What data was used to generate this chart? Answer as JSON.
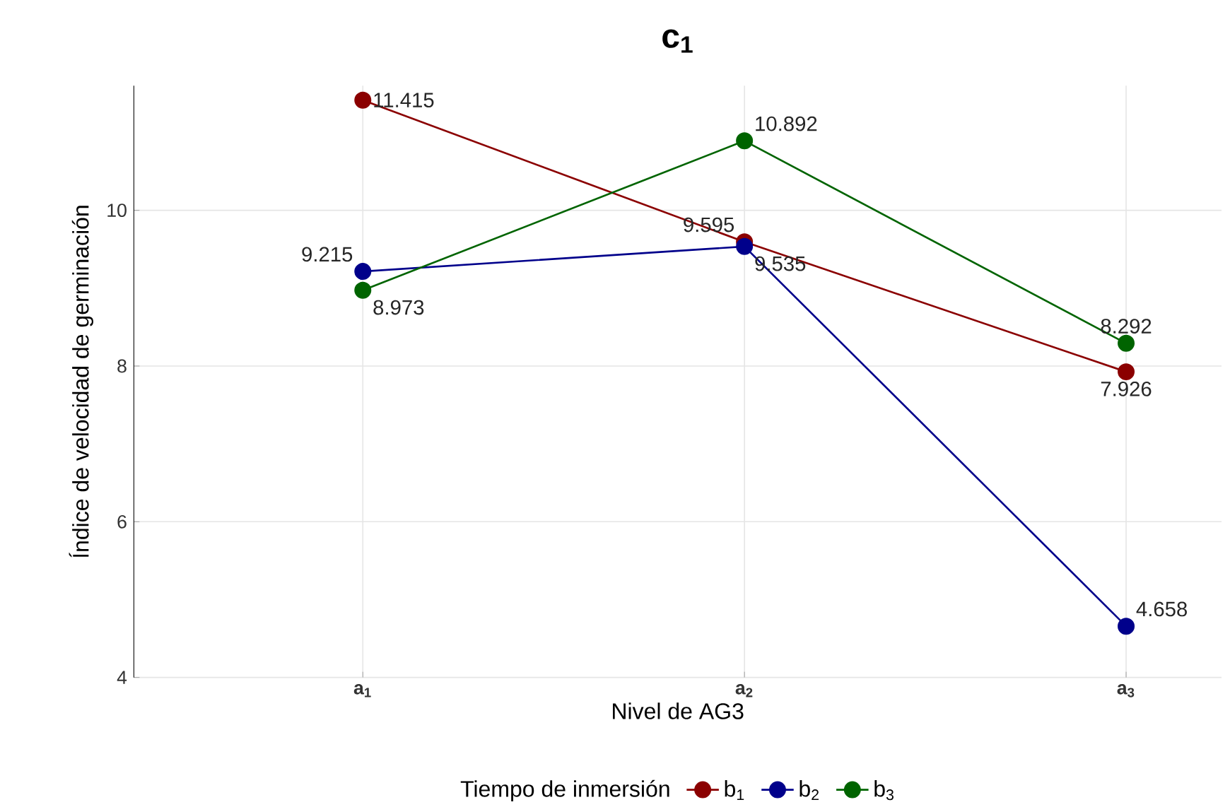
{
  "chart_data": {
    "type": "line",
    "title": "c$_{1}$",
    "xlabel": "Nivel de AG3",
    "ylabel": "Índice de velocidad de germinación",
    "categories": [
      "a$_{1}$",
      "a$_{2}$",
      "a$_{3}$"
    ],
    "series": [
      {
        "name": "b$_{1}$",
        "color": "#8b0000",
        "values": [
          11.415,
          9.595,
          7.926
        ]
      },
      {
        "name": "b$_{2}$",
        "color": "#00008b",
        "values": [
          9.215,
          9.535,
          4.658
        ]
      },
      {
        "name": "b$_{3}$",
        "color": "#006400",
        "values": [
          8.973,
          10.892,
          8.292
        ]
      }
    ],
    "ylim": [
      4,
      11.6
    ],
    "yticks": [
      4,
      6,
      8,
      10
    ],
    "grid": true,
    "legend": "bottom",
    "legend_title": "Tiempo de inmersión",
    "marker": "circle",
    "line_style": "solid",
    "data_labels": true
  }
}
